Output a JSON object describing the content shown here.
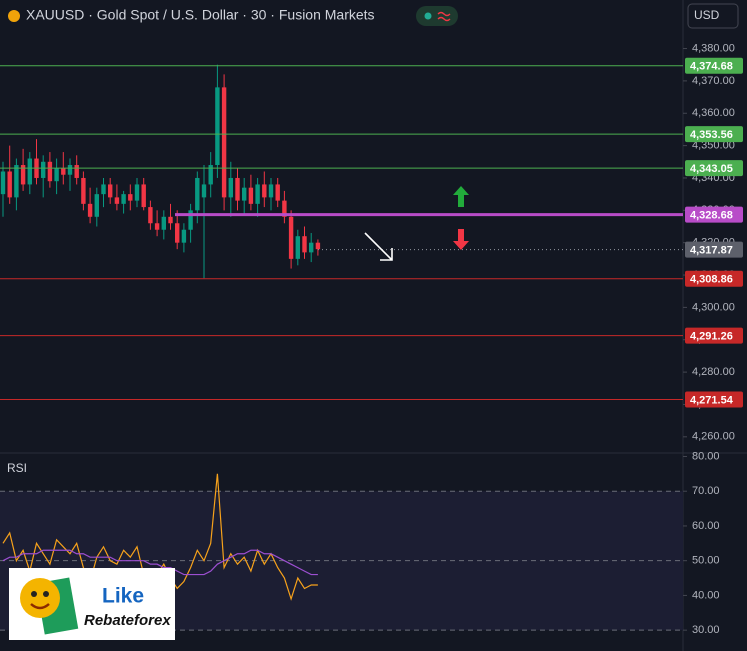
{
  "header": {
    "symbol": "XAUUSD · Gold Spot / U.S. Dollar · 30 · Fusion Markets",
    "currency": "USD"
  },
  "logo": {
    "line1": "Like",
    "line2": "Rebateforex"
  },
  "chart_data": [
    {
      "type": "candlestick",
      "up_color": "#089981",
      "down_color": "#f23645",
      "ylim": [
        4255,
        4395
      ],
      "yticks": [
        {
          "value": 4260,
          "label": "4,260.00"
        },
        {
          "value": 4270,
          "label": "4,270.00"
        },
        {
          "value": 4280,
          "label": "4,280.00"
        },
        {
          "value": 4290,
          "label": "4,290.00"
        },
        {
          "value": 4300,
          "label": "4,300.00"
        },
        {
          "value": 4310,
          "label": "4,310.00"
        },
        {
          "value": 4320,
          "label": "4,320.00"
        },
        {
          "value": 4330,
          "label": "4,330.00"
        },
        {
          "value": 4340,
          "label": "4,340.00"
        },
        {
          "value": 4350,
          "label": "4,350.00"
        },
        {
          "value": 4360,
          "label": "4,360.00"
        },
        {
          "value": 4370,
          "label": "4,370.00"
        },
        {
          "value": 4380,
          "label": "4,380.00"
        }
      ],
      "levels": [
        {
          "value": 4374.68,
          "label": "4,374.68",
          "color": "#4caf50"
        },
        {
          "value": 4353.56,
          "label": "4,353.56",
          "color": "#4caf50"
        },
        {
          "value": 4343.05,
          "label": "4,343.05",
          "color": "#4caf50"
        },
        {
          "value": 4328.68,
          "label": "4,328.68",
          "color": "#b84cc8"
        },
        {
          "value": 4317.87,
          "label": "4,317.87",
          "color": "#5d606b"
        },
        {
          "value": 4308.86,
          "label": "4,308.86",
          "color": "#c62828"
        },
        {
          "value": 4291.26,
          "label": "4,291.26",
          "color": "#c62828"
        },
        {
          "value": 4271.54,
          "label": "4,271.54",
          "color": "#c62828"
        }
      ],
      "candles": [
        [
          4335,
          4345,
          4328,
          4342
        ],
        [
          4342,
          4350,
          4332,
          4334
        ],
        [
          4334,
          4346,
          4330,
          4344
        ],
        [
          4344,
          4349,
          4336,
          4338
        ],
        [
          4338,
          4348,
          4335,
          4346
        ],
        [
          4346,
          4352,
          4338,
          4340
        ],
        [
          4340,
          4347,
          4334,
          4345
        ],
        [
          4345,
          4348,
          4337,
          4339
        ],
        [
          4339,
          4346,
          4335,
          4343
        ],
        [
          4343,
          4348,
          4338,
          4341
        ],
        [
          4341,
          4346,
          4336,
          4344
        ],
        [
          4344,
          4347,
          4338,
          4340
        ],
        [
          4340,
          4342,
          4330,
          4332
        ],
        [
          4332,
          4337,
          4326,
          4328
        ],
        [
          4328,
          4337,
          4325,
          4335
        ],
        [
          4335,
          4340,
          4331,
          4338
        ],
        [
          4338,
          4340,
          4332,
          4334
        ],
        [
          4334,
          4338,
          4330,
          4332
        ],
        [
          4332,
          4336,
          4329,
          4335
        ],
        [
          4335,
          4338,
          4330,
          4333
        ],
        [
          4333,
          4340,
          4331,
          4338
        ],
        [
          4338,
          4340,
          4330,
          4331
        ],
        [
          4331,
          4333,
          4324,
          4326
        ],
        [
          4326,
          4330,
          4322,
          4324
        ],
        [
          4324,
          4330,
          4321,
          4328
        ],
        [
          4328,
          4332,
          4324,
          4326
        ],
        [
          4326,
          4330,
          4318,
          4320
        ],
        [
          4320,
          4326,
          4317,
          4324
        ],
        [
          4324,
          4332,
          4320,
          4330
        ],
        [
          4330,
          4342,
          4326,
          4340
        ],
        [
          4334,
          4344,
          4309,
          4338
        ],
        [
          4338,
          4348,
          4334,
          4344
        ],
        [
          4344,
          4375,
          4340,
          4368
        ],
        [
          4368,
          4372,
          4330,
          4334
        ],
        [
          4334,
          4345,
          4328,
          4340
        ],
        [
          4340,
          4343,
          4330,
          4333
        ],
        [
          4333,
          4340,
          4329,
          4337
        ],
        [
          4337,
          4341,
          4330,
          4332
        ],
        [
          4332,
          4340,
          4328,
          4338
        ],
        [
          4338,
          4342,
          4331,
          4334
        ],
        [
          4334,
          4340,
          4330,
          4338
        ],
        [
          4338,
          4340,
          4331,
          4333
        ],
        [
          4333,
          4336,
          4326,
          4328
        ],
        [
          4328,
          4330,
          4312,
          4315
        ],
        [
          4315,
          4324,
          4313,
          4322
        ],
        [
          4322,
          4325,
          4315,
          4317
        ],
        [
          4317,
          4323,
          4314,
          4320
        ],
        [
          4320,
          4321,
          4316,
          4318
        ]
      ]
    },
    {
      "type": "line",
      "title": "RSI",
      "ylim": [
        24,
        81
      ],
      "yticks": [
        {
          "value": 30,
          "label": "30.00"
        },
        {
          "value": 40,
          "label": "40.00"
        },
        {
          "value": 50,
          "label": "50.00"
        },
        {
          "value": 60,
          "label": "60.00"
        },
        {
          "value": 70,
          "label": "70.00"
        },
        {
          "value": 80,
          "label": "80.00"
        }
      ],
      "levels": [
        30,
        50,
        70
      ],
      "series": [
        {
          "color": "#f7a21b",
          "values": [
            55,
            58,
            50,
            53,
            47,
            55,
            52,
            49,
            56,
            54,
            52,
            55,
            48,
            44,
            51,
            54,
            50,
            49,
            53,
            51,
            54,
            46,
            44,
            46,
            49,
            45,
            42,
            44,
            48,
            53,
            50,
            55,
            75,
            48,
            52,
            49,
            51,
            47,
            53,
            49,
            52,
            48,
            45,
            39,
            45,
            42,
            43,
            43
          ]
        },
        {
          "color": "#9c4fd1",
          "values": [
            50,
            51,
            51,
            52,
            52,
            52,
            53,
            53,
            53,
            53,
            53,
            52,
            52,
            51,
            51,
            51,
            51,
            50,
            50,
            50,
            50,
            50,
            49,
            49,
            48,
            48,
            47,
            46,
            46,
            46,
            46,
            47,
            49,
            50,
            51,
            52,
            52,
            53,
            53,
            52,
            52,
            51,
            50,
            49,
            48,
            47,
            46,
            46
          ]
        }
      ]
    }
  ]
}
